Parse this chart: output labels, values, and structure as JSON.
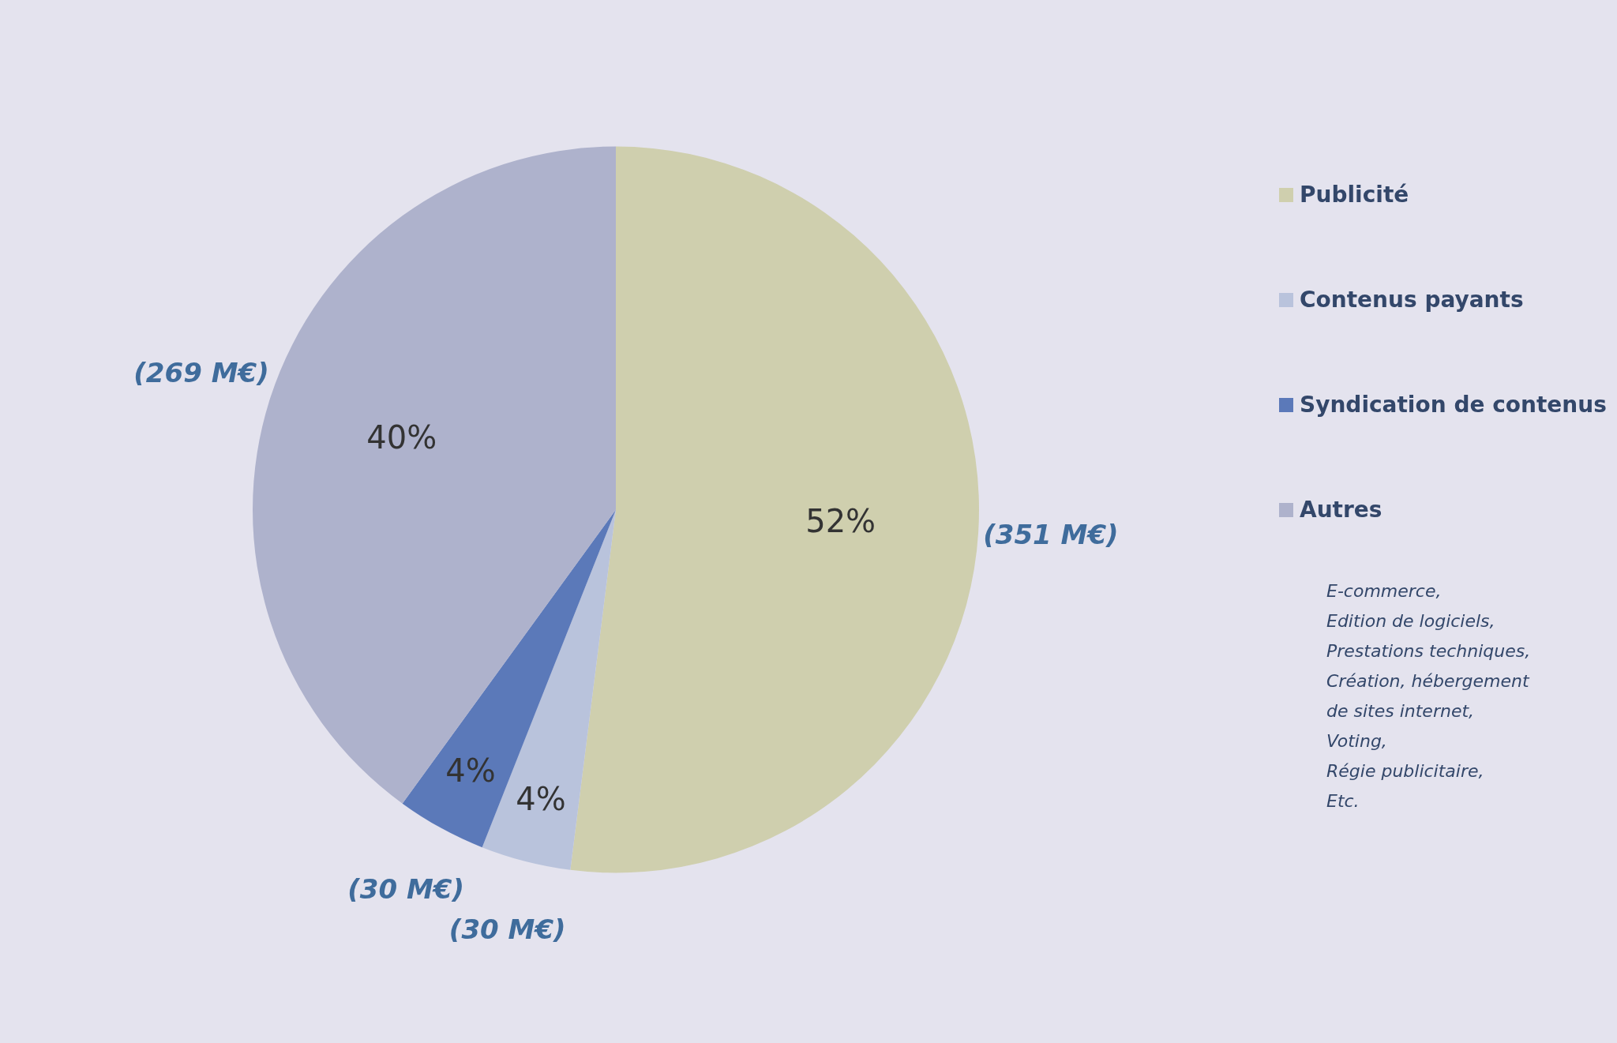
{
  "chart_data": {
    "type": "pie",
    "categories": [
      "Publicité",
      "Contenus payants",
      "Syndication de contenus",
      "Autres"
    ],
    "values": [
      52,
      4,
      4,
      40
    ],
    "colors": [
      "#cfcfae",
      "#b9c3dc",
      "#5b79b9",
      "#aeb2cc"
    ],
    "value_labels": [
      "52%",
      "4%",
      "4%",
      "40%"
    ],
    "legend": "right",
    "annotations": [
      {
        "text": "(351 M€)",
        "x": "Publicité"
      },
      {
        "text": "(30 M€)",
        "x": "Contenus payants"
      },
      {
        "text": "(30 M€)",
        "x": "Syndication de contenus"
      },
      {
        "text": "(269 M€)",
        "x": "Autres"
      },
      "E-commerce,\nEdition de logiciels,\nPrestations techniques,\nCréation, hébergement\nde sites internet,\nVoting,\nRégie publicitaire,\nEtc."
    ]
  }
}
